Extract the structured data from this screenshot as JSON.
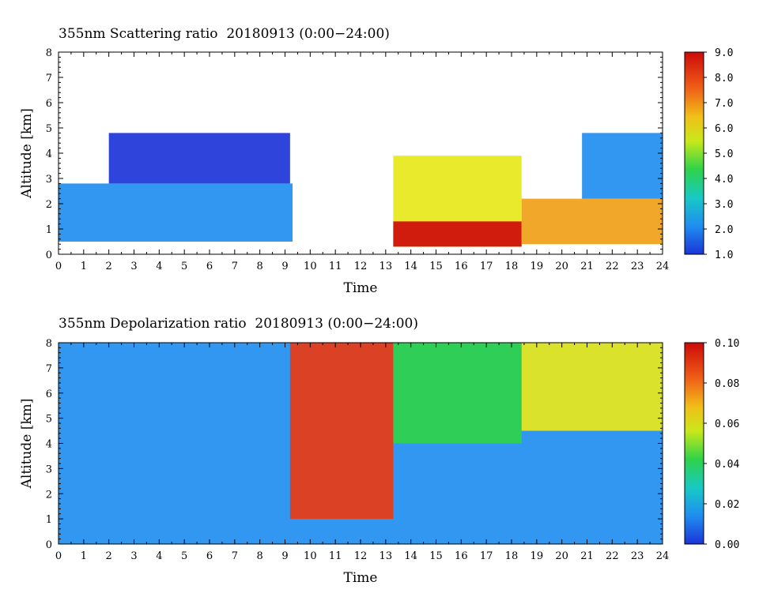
{
  "chart_data": [
    {
      "type": "heatmap",
      "title": "355nm Scattering ratio  20180913 (0:00−24:00)",
      "xlabel": "Time",
      "ylabel": "Altitude [km]",
      "xlim": [
        0,
        24
      ],
      "ylim": [
        0,
        8
      ],
      "x_ticks": [
        "0",
        "1",
        "2",
        "3",
        "4",
        "5",
        "6",
        "7",
        "8",
        "9",
        "10",
        "11",
        "12",
        "13",
        "14",
        "15",
        "16",
        "17",
        "18",
        "19",
        "20",
        "21",
        "22",
        "23",
        "24"
      ],
      "y_ticks": [
        "0",
        "1",
        "2",
        "3",
        "4",
        "5",
        "6",
        "7",
        "8"
      ],
      "colorbar": {
        "min": 1.0,
        "max": 9.0,
        "ticks": [
          "1.0",
          "2.0",
          "3.0",
          "4.0",
          "5.0",
          "6.0",
          "7.0",
          "8.0",
          "9.0"
        ]
      },
      "colormap": [
        "#1c34d8",
        "#1f8ef0",
        "#18c9c4",
        "#2fd24a",
        "#e8e81a",
        "#f0a018",
        "#e83a14",
        "#cc0a0a"
      ],
      "features": [
        {
          "time": [
            0,
            9.3
          ],
          "altitude": [
            0.5,
            2.8
          ],
          "value": 2.0
        },
        {
          "time": [
            2,
            9.2
          ],
          "altitude": [
            2.8,
            4.8
          ],
          "value": 1.5
        },
        {
          "time": [
            13.3,
            18.4
          ],
          "altitude": [
            0.3,
            3.9
          ],
          "value": 5.5
        },
        {
          "time": [
            13.3,
            18.4
          ],
          "altitude": [
            0.3,
            1.3
          ],
          "value": 9.0
        },
        {
          "time": [
            18.4,
            24
          ],
          "altitude": [
            0.4,
            2.2
          ],
          "value": 6.5
        },
        {
          "time": [
            20.8,
            24
          ],
          "altitude": [
            2.2,
            4.8
          ],
          "value": 2.5
        }
      ]
    },
    {
      "type": "heatmap",
      "title": "355nm Depolarization ratio  20180913 (0:00−24:00)",
      "xlabel": "Time",
      "ylabel": "Altitude [km]",
      "xlim": [
        0,
        24
      ],
      "ylim": [
        0,
        8
      ],
      "x_ticks": [
        "0",
        "1",
        "2",
        "3",
        "4",
        "5",
        "6",
        "7",
        "8",
        "9",
        "10",
        "11",
        "12",
        "13",
        "14",
        "15",
        "16",
        "17",
        "18",
        "19",
        "20",
        "21",
        "22",
        "23",
        "24"
      ],
      "y_ticks": [
        "0",
        "1",
        "2",
        "3",
        "4",
        "5",
        "6",
        "7",
        "8"
      ],
      "colorbar": {
        "min": 0.0,
        "max": 0.1,
        "ticks": [
          "0.00",
          "0.02",
          "0.04",
          "0.06",
          "0.08",
          "0.10"
        ]
      },
      "colormap": [
        "#1c34d8",
        "#1f8ef0",
        "#18c9c4",
        "#2fd24a",
        "#e8e81a",
        "#f0a018",
        "#e83a14",
        "#cc0a0a"
      ],
      "features": [
        {
          "time": [
            0,
            24
          ],
          "altitude": [
            0,
            8
          ],
          "value": 0.015
        },
        {
          "time": [
            9.2,
            13.3
          ],
          "altitude": [
            1.0,
            8.0
          ],
          "value": 0.08
        },
        {
          "time": [
            13.3,
            18.4
          ],
          "altitude": [
            4.0,
            8.0
          ],
          "value": 0.04
        },
        {
          "time": [
            18.4,
            24
          ],
          "altitude": [
            4.5,
            8.0
          ],
          "value": 0.05
        }
      ]
    }
  ]
}
